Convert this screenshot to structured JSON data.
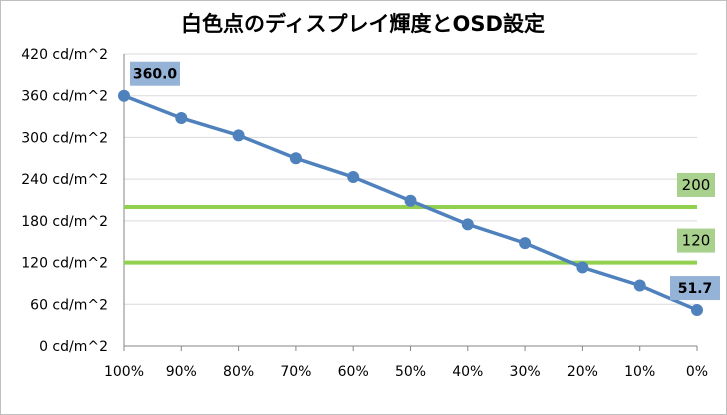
{
  "chart_data": {
    "type": "line",
    "title": "白色点のディスプレイ輝度とOSD設定",
    "categories": [
      "100%",
      "90%",
      "80%",
      "70%",
      "60%",
      "50%",
      "40%",
      "30%",
      "20%",
      "10%",
      "0%"
    ],
    "series": [
      {
        "values": [
          360.0,
          328,
          303,
          270,
          243,
          209,
          175,
          148,
          113,
          87,
          51.7
        ],
        "color": "#4f81bd"
      }
    ],
    "y_ticks": [
      "0 cd/m^2",
      "60 cd/m^2",
      "120 cd/m^2",
      "180 cd/m^2",
      "240 cd/m^2",
      "300 cd/m^2",
      "360 cd/m^2",
      "420 cd/m^2"
    ],
    "ylim": [
      0,
      420
    ],
    "y_step": 60,
    "grid": true,
    "data_labels": [
      {
        "index": 0,
        "text": "360.0"
      },
      {
        "index": 10,
        "text": "51.7"
      }
    ],
    "reference_lines": [
      {
        "value": 200,
        "label": "200",
        "color": "#92d050"
      },
      {
        "value": 120,
        "label": "120",
        "color": "#92d050"
      }
    ],
    "colors": {
      "grid": "#d9d9d9",
      "label_box_blue": "#95b3d7",
      "label_box_green": "#a9d18e"
    }
  }
}
